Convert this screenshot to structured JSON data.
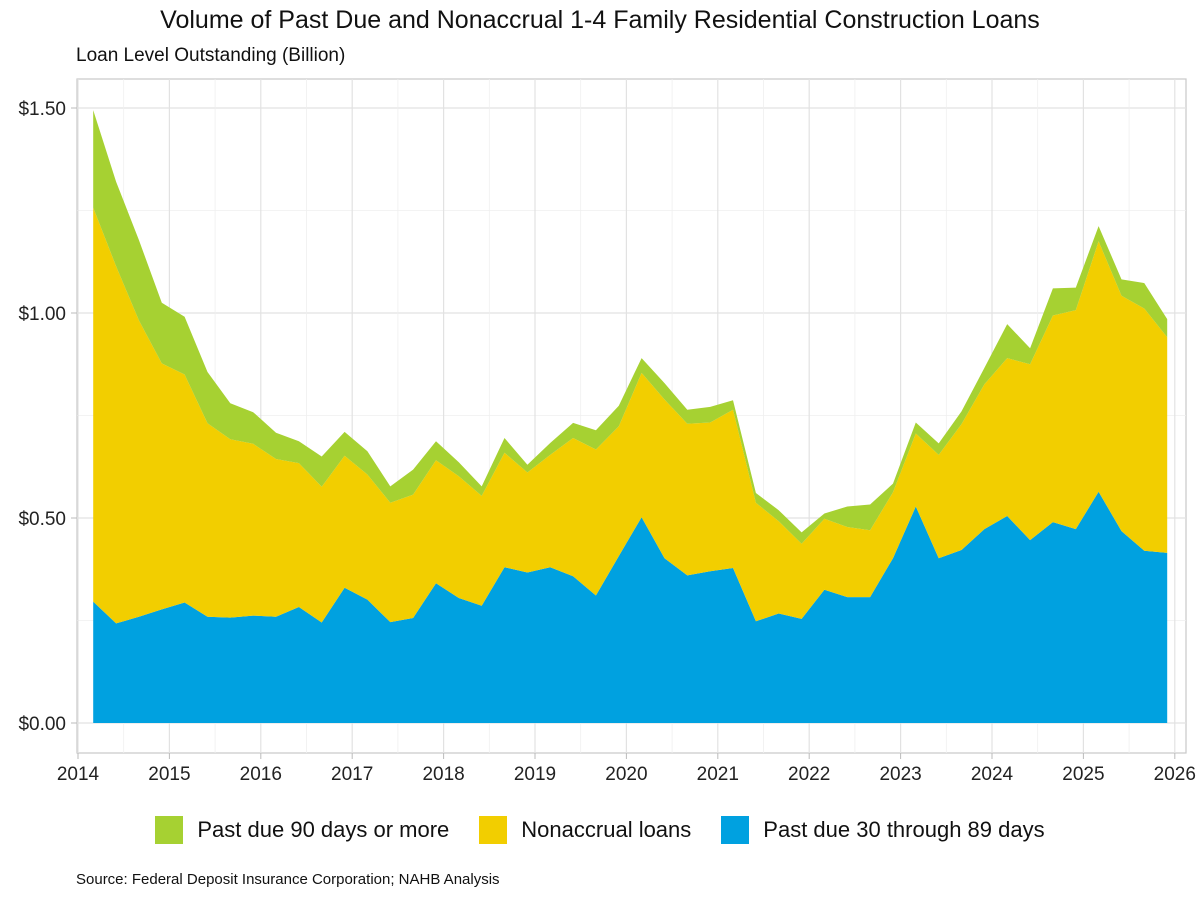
{
  "chart_data": {
    "type": "area",
    "stacked": true,
    "title": "Volume of Past Due and Nonaccrual 1-4 Family Residential Construction Loans",
    "subtitle": "Loan Level Outstanding (Billion)",
    "xlabel": "",
    "ylabel": "",
    "ylim": [
      0,
      1.6
    ],
    "xlim": [
      2014,
      2026
    ],
    "grid": true,
    "legend_position": "bottom",
    "x_ticks": [
      "2014",
      "2015",
      "2016",
      "2017",
      "2018",
      "2019",
      "2020",
      "2021",
      "2022",
      "2023",
      "2024",
      "2025",
      "2026"
    ],
    "y_ticks": [
      {
        "value": 0,
        "label": "$0.00"
      },
      {
        "value": 0.5,
        "label": "$0.50"
      },
      {
        "value": 1.0,
        "label": "$1.00"
      },
      {
        "value": 1.5,
        "label": "$1.50"
      }
    ],
    "x": [
      "2014-03",
      "2014-06",
      "2014-09",
      "2014-12",
      "2015-03",
      "2015-06",
      "2015-09",
      "2015-12",
      "2016-03",
      "2016-06",
      "2016-09",
      "2016-12",
      "2017-03",
      "2017-06",
      "2017-09",
      "2017-12",
      "2018-03",
      "2018-06",
      "2018-09",
      "2018-12",
      "2019-03",
      "2019-06",
      "2019-09",
      "2019-12",
      "2020-03",
      "2020-06",
      "2020-09",
      "2020-12",
      "2021-03",
      "2021-06",
      "2021-09",
      "2021-12",
      "2022-03",
      "2022-06",
      "2022-09",
      "2022-12",
      "2023-03",
      "2023-06",
      "2023-09",
      "2023-12",
      "2024-03",
      "2024-06",
      "2024-09",
      "2024-12",
      "2025-03",
      "2025-06",
      "2025-09",
      "2025-12"
    ],
    "series": [
      {
        "name": "Past due 30 through 89 days",
        "color": "#00a1e0",
        "values": [
          0.296,
          0.243,
          0.259,
          0.277,
          0.294,
          0.259,
          0.257,
          0.262,
          0.259,
          0.283,
          0.245,
          0.33,
          0.301,
          0.246,
          0.256,
          0.341,
          0.305,
          0.286,
          0.38,
          0.367,
          0.38,
          0.358,
          0.311,
          0.407,
          0.502,
          0.402,
          0.36,
          0.37,
          0.378,
          0.248,
          0.267,
          0.254,
          0.325,
          0.307,
          0.307,
          0.402,
          0.528,
          0.402,
          0.422,
          0.473,
          0.505,
          0.446,
          0.49,
          0.473,
          0.564,
          0.468,
          0.42,
          0.415
        ]
      },
      {
        "name": "Nonaccrual loans",
        "color": "#f2ce00",
        "values": [
          0.961,
          0.871,
          0.723,
          0.6,
          0.556,
          0.472,
          0.435,
          0.419,
          0.385,
          0.351,
          0.331,
          0.322,
          0.305,
          0.291,
          0.301,
          0.3,
          0.297,
          0.268,
          0.279,
          0.244,
          0.274,
          0.337,
          0.356,
          0.317,
          0.352,
          0.387,
          0.37,
          0.363,
          0.386,
          0.289,
          0.225,
          0.183,
          0.173,
          0.171,
          0.163,
          0.161,
          0.178,
          0.252,
          0.307,
          0.353,
          0.385,
          0.429,
          0.504,
          0.534,
          0.611,
          0.574,
          0.591,
          0.526
        ]
      },
      {
        "name": "Past due 90 days or more",
        "color": "#a6d132",
        "values": [
          0.238,
          0.206,
          0.196,
          0.148,
          0.141,
          0.125,
          0.088,
          0.077,
          0.064,
          0.053,
          0.074,
          0.058,
          0.057,
          0.04,
          0.061,
          0.046,
          0.034,
          0.023,
          0.036,
          0.019,
          0.029,
          0.037,
          0.047,
          0.05,
          0.036,
          0.04,
          0.034,
          0.038,
          0.023,
          0.024,
          0.027,
          0.028,
          0.013,
          0.05,
          0.063,
          0.021,
          0.027,
          0.028,
          0.031,
          0.04,
          0.083,
          0.039,
          0.066,
          0.055,
          0.037,
          0.04,
          0.062,
          0.044
        ]
      }
    ],
    "legend_order": [
      "Past due 90 days or more",
      "Nonaccrual loans",
      "Past due 30 through 89 days"
    ],
    "source": "Source: Federal Deposit Insurance Corporation; NAHB Analysis"
  }
}
